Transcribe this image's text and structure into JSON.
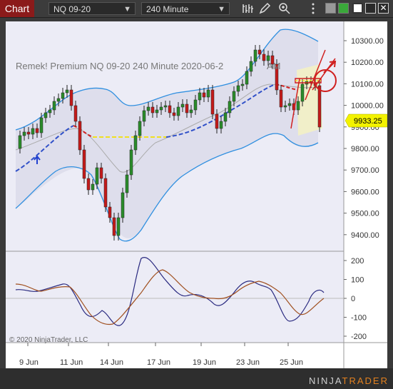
{
  "toolbar": {
    "chart_tab": "Chart",
    "instrument": "NQ 09-20",
    "interval": "240 Minute",
    "icons": [
      "bars-icon",
      "pencil-icon",
      "zoom-icon",
      "menu-dots-icon"
    ],
    "window_buttons": [
      "gray-square",
      "green-square",
      "maximize",
      "close"
    ]
  },
  "chart": {
    "label": "Remek!  Premium  NQ 09-20  240 Minute  2020-06-2",
    "label_suffix": "AM",
    "last_price": "9933.25",
    "copyright": "© 2020 NinjaTrader, LLC"
  },
  "price_axis": [
    "10300.00",
    "10200.00",
    "10100.00",
    "10000.00",
    "9900.00",
    "9800.00",
    "9700.00",
    "9600.00",
    "9500.00",
    "9400.00"
  ],
  "osc_axis": [
    "200",
    "100",
    "0",
    "-100",
    "-200"
  ],
  "time_axis": [
    "9 Jun",
    "11 Jun",
    "14 Jun",
    "17 Jun",
    "19 Jun",
    "23 Jun",
    "25 Jun"
  ],
  "logo": {
    "part1": "NINJA",
    "part2": "TRADER"
  },
  "colors": {
    "up": "#2a8c2a",
    "down": "#c41a1a",
    "band": "#2f8fe0",
    "ma": "#3050c8",
    "osc1": "#2a2a80",
    "osc2": "#a05020"
  }
}
